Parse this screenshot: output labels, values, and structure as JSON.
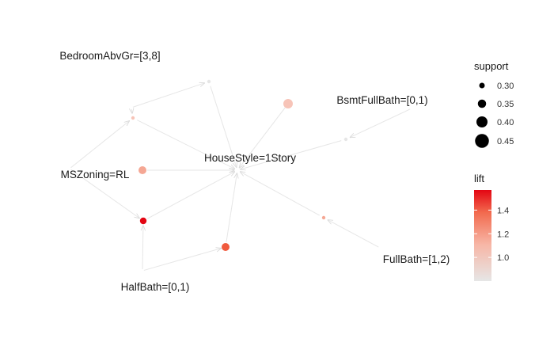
{
  "graph": {
    "items": [
      {
        "id": "bedroom",
        "label": "BedroomAbvGr=[3,8]"
      },
      {
        "id": "bsmtfullbath",
        "label": "BsmtFullBath=[0,1)"
      },
      {
        "id": "housestyle",
        "label": "HouseStyle=1Story"
      },
      {
        "id": "mszoning",
        "label": "MSZoning=RL"
      },
      {
        "id": "halfbath",
        "label": "HalfBath=[0,1)"
      },
      {
        "id": "fullbath",
        "label": "FullBath=[1,2)"
      }
    ],
    "rules": [
      {
        "id": "r1",
        "support": 0.26,
        "lift": 0.85,
        "color": "#e6e6e6"
      },
      {
        "id": "r2",
        "support": 0.26,
        "lift": 1.05,
        "color": "#f7c4b8"
      },
      {
        "id": "r3",
        "support": 0.45,
        "lift": 1.02,
        "color": "#f7c4b8"
      },
      {
        "id": "r4",
        "support": 0.26,
        "lift": 0.85,
        "color": "#e6e6e6"
      },
      {
        "id": "r5",
        "support": 0.4,
        "lift": 1.12,
        "color": "#f5a794"
      },
      {
        "id": "r6",
        "support": 0.36,
        "lift": 1.57,
        "color": "#e30613"
      },
      {
        "id": "r7",
        "support": 0.4,
        "lift": 1.36,
        "color": "#f05a3e"
      },
      {
        "id": "r8",
        "support": 0.26,
        "lift": 1.12,
        "color": "#f5a794"
      }
    ],
    "edges": [
      [
        "bedroom",
        "r1"
      ],
      [
        "r1",
        "housestyle"
      ],
      [
        "bedroom",
        "r2"
      ],
      [
        "mszoning",
        "r2"
      ],
      [
        "r2",
        "housestyle"
      ],
      [
        "r3",
        "housestyle"
      ],
      [
        "bsmtfullbath",
        "r4"
      ],
      [
        "r4",
        "housestyle"
      ],
      [
        "r5",
        "housestyle"
      ],
      [
        "mszoning",
        "r6"
      ],
      [
        "halfbath",
        "r6"
      ],
      [
        "r6",
        "housestyle"
      ],
      [
        "halfbath",
        "r7"
      ],
      [
        "r7",
        "housestyle"
      ],
      [
        "fullbath",
        "r8"
      ],
      [
        "r8",
        "housestyle"
      ]
    ]
  },
  "legend": {
    "support": {
      "title": "support",
      "entries": [
        {
          "label": "0.30",
          "value": 0.3
        },
        {
          "label": "0.35",
          "value": 0.35
        },
        {
          "label": "0.40",
          "value": 0.4
        },
        {
          "label": "0.45",
          "value": 0.45
        }
      ]
    },
    "lift": {
      "title": "lift",
      "ticks": [
        {
          "label": "1.4",
          "value": 1.4
        },
        {
          "label": "1.2",
          "value": 1.2
        },
        {
          "label": "1.0",
          "value": 1.0
        }
      ],
      "range": [
        0.8,
        1.57
      ],
      "low_color": "#e6e6e6",
      "high_color": "#e30613"
    }
  }
}
